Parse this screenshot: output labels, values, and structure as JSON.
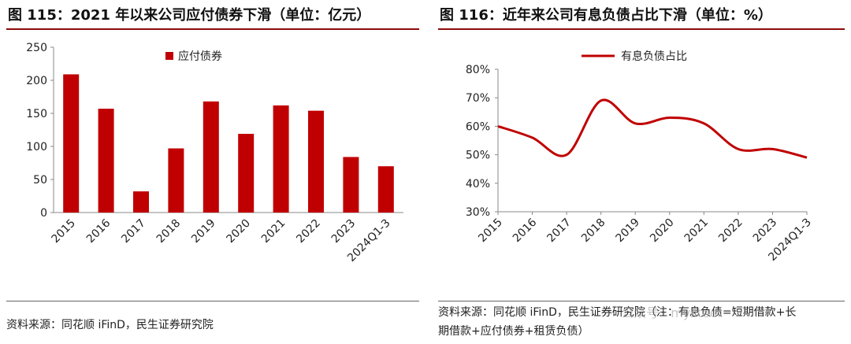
{
  "charts": [
    {
      "title": "图 115：2021 年以来公司应付债券下滑（单位：亿元）",
      "source": "资料来源：同花顺 iFinD，民生证券研究院",
      "chart_data": {
        "type": "bar",
        "categories": [
          "2015",
          "2016",
          "2017",
          "2018",
          "2019",
          "2020",
          "2021",
          "2022",
          "2023",
          "2024Q1-3"
        ],
        "series": [
          {
            "name": "应付债券",
            "values": [
              209,
              157,
              32,
              97,
              168,
              119,
              162,
              154,
              84,
              70
            ]
          }
        ],
        "ylim": [
          0,
          250
        ],
        "yticks": [
          0,
          50,
          100,
          150,
          200,
          250
        ],
        "ytick_labels": [
          "0",
          "50",
          "100",
          "150",
          "200",
          "250"
        ],
        "legend_position": "top-center",
        "color": "#c00000"
      }
    },
    {
      "title": "图 116：近年来公司有息负债占比下滑（单位：%）",
      "source_line1": "资料来源：同花顺 iFinD，民生证券研究院（注：有息负债=短期借款+长",
      "source_line2": "期借款+应付债券+租赁负债）",
      "watermark": "公众号 · mysteel",
      "chart_data": {
        "type": "line",
        "categories": [
          "2015",
          "2016",
          "2017",
          "2018",
          "2019",
          "2020",
          "2021",
          "2022",
          "2023",
          "2024Q1-3"
        ],
        "series": [
          {
            "name": "有息负债占比",
            "values": [
              60,
              56,
              50,
              69,
              61,
              63,
              61,
              52,
              52,
              49
            ]
          }
        ],
        "ylim": [
          30,
          80
        ],
        "yticks": [
          30,
          40,
          50,
          60,
          70,
          80
        ],
        "ytick_labels": [
          "30%",
          "40%",
          "50%",
          "60%",
          "70%",
          "80%"
        ],
        "legend_position": "top-center",
        "color": "#c00000"
      }
    }
  ]
}
